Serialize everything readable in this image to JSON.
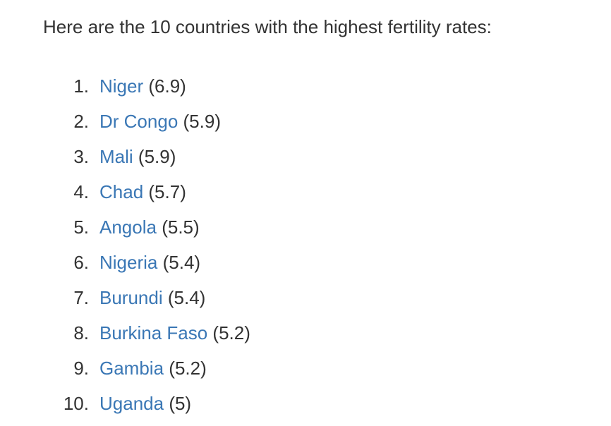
{
  "intro": "Here are the 10 countries with the highest fertility rates:",
  "items": [
    {
      "num": "1.",
      "country": "Niger",
      "rate": "(6.9)"
    },
    {
      "num": "2.",
      "country": "Dr Congo",
      "rate": "(5.9)"
    },
    {
      "num": "3.",
      "country": "Mali",
      "rate": "(5.9)"
    },
    {
      "num": "4.",
      "country": "Chad",
      "rate": "(5.7)"
    },
    {
      "num": "5.",
      "country": "Angola",
      "rate": "(5.5)"
    },
    {
      "num": "6.",
      "country": "Nigeria",
      "rate": "(5.4)"
    },
    {
      "num": "7.",
      "country": "Burundi",
      "rate": "(5.4)"
    },
    {
      "num": "8.",
      "country": "Burkina Faso",
      "rate": "(5.2)"
    },
    {
      "num": "9.",
      "country": "Gambia",
      "rate": "(5.2)"
    },
    {
      "num": "10.",
      "country": "Uganda",
      "rate": "(5)"
    }
  ],
  "colors": {
    "text": "#333333",
    "link": "#3a77b5",
    "background": "#ffffff"
  }
}
